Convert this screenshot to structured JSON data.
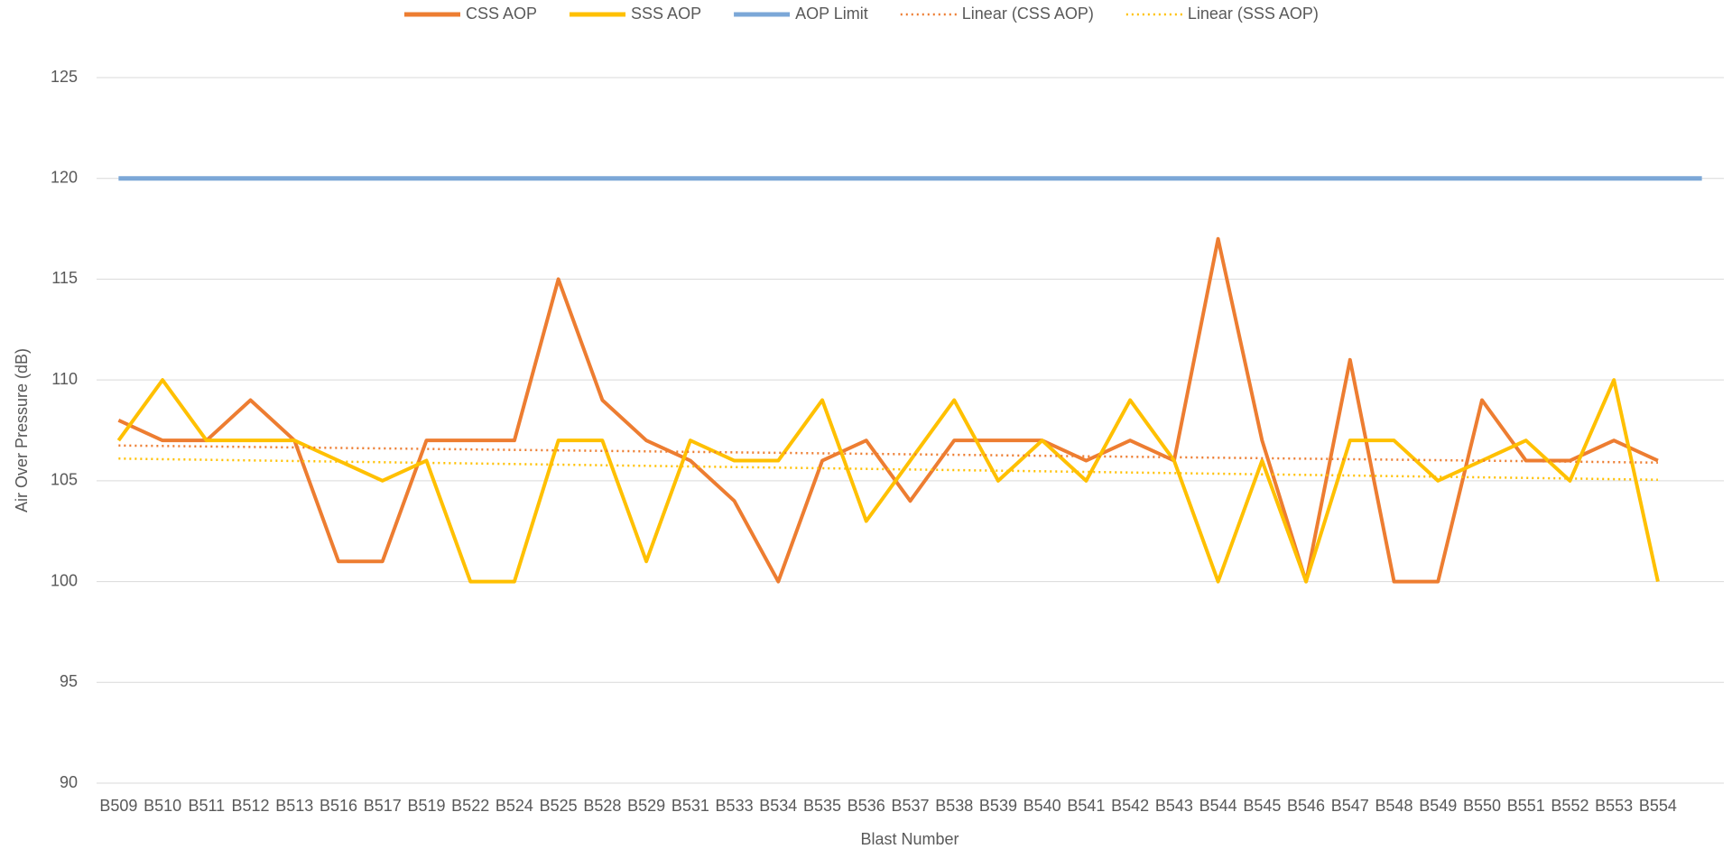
{
  "chart_data": {
    "type": "line",
    "x_label": "Blast Number",
    "y_label": "Air Over Pressure (dB)",
    "categories": [
      "B509",
      "B510",
      "B511",
      "B512",
      "B513",
      "B516",
      "B517",
      "B519",
      "B522",
      "B524",
      "B525",
      "B528",
      "B529",
      "B531",
      "B533",
      "B534",
      "B535",
      "B536",
      "B537",
      "B538",
      "B539",
      "B540",
      "B541",
      "B542",
      "B543",
      "B544",
      "B545",
      "B546",
      "B547",
      "B548",
      "B549",
      "B550",
      "B551",
      "B552",
      "B553",
      "B554",
      null
    ],
    "series": [
      {
        "name": "CSS AOP",
        "color": "#ed7d31",
        "values": [
          108,
          107,
          107,
          109,
          107,
          101,
          101,
          107,
          107,
          107,
          115,
          109,
          107,
          106,
          104,
          100,
          106,
          107,
          104,
          107,
          107,
          107,
          106,
          107,
          106,
          117,
          107,
          100,
          111,
          100,
          100,
          109,
          106,
          106,
          107,
          106,
          null
        ]
      },
      {
        "name": "SSS AOP",
        "color": "#ffc000",
        "values": [
          107,
          110,
          107,
          107,
          107,
          106,
          105,
          106,
          100,
          100,
          107,
          107,
          101,
          107,
          106,
          106,
          109,
          103,
          106,
          109,
          105,
          107,
          105,
          109,
          106,
          100,
          106,
          100,
          107,
          107,
          105,
          106,
          107,
          105,
          110,
          100,
          null
        ]
      },
      {
        "name": "AOP Limit",
        "color": "#7ba7d7",
        "values": [
          120,
          120,
          120,
          120,
          120,
          120,
          120,
          120,
          120,
          120,
          120,
          120,
          120,
          120,
          120,
          120,
          120,
          120,
          120,
          120,
          120,
          120,
          120,
          120,
          120,
          120,
          120,
          120,
          120,
          120,
          120,
          120,
          120,
          120,
          120,
          120,
          120
        ]
      }
    ],
    "trendlines": [
      {
        "name": "Linear (CSS AOP)",
        "color": "#ed7d31",
        "from": 106.75,
        "to": 105.9
      },
      {
        "name": "Linear (SSS AOP)",
        "color": "#ffc000",
        "from": 106.1,
        "to": 105.05
      }
    ],
    "ylim": [
      90,
      125
    ],
    "yticks": [
      90,
      95,
      100,
      105,
      110,
      115,
      120,
      125
    ],
    "grid": true,
    "legend": "top"
  }
}
